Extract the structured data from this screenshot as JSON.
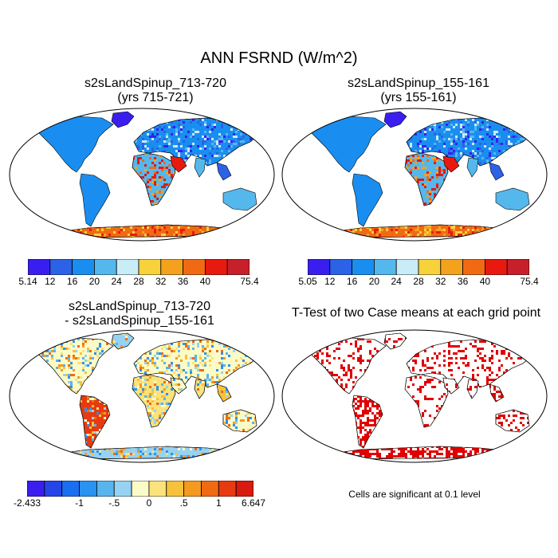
{
  "figure": {
    "title": "ANN FSRND (W/m^2)"
  },
  "panels": [
    {
      "id": "case1",
      "title_line1": "s2sLandSpinup_713-720",
      "title_line2": "(yrs 715-721)",
      "colorbar": {
        "labels": [
          "5.14",
          "12",
          "16",
          "20",
          "24",
          "28",
          "32",
          "36",
          "40",
          "75.4"
        ],
        "colors": [
          "#3a1ef0",
          "#2b62e6",
          "#1a8ef0",
          "#55b8ec",
          "#c8ecf8",
          "#f7d23b",
          "#f4a21e",
          "#f06a14",
          "#e81a10",
          "#c8202a"
        ]
      }
    },
    {
      "id": "case2",
      "title_line1": "s2sLandSpinup_155-161",
      "title_line2": "(yrs 155-161)",
      "colorbar": {
        "labels": [
          "5.05",
          "12",
          "16",
          "20",
          "24",
          "28",
          "32",
          "36",
          "40",
          "75.4"
        ],
        "colors": [
          "#3a1ef0",
          "#2b62e6",
          "#1a8ef0",
          "#55b8ec",
          "#c8ecf8",
          "#f7d23b",
          "#f4a21e",
          "#f06a14",
          "#e81a10",
          "#c8202a"
        ]
      }
    },
    {
      "id": "diff",
      "title_line1": "s2sLandSpinup_713-720",
      "title_line2": "- s2sLandSpinup_155-161",
      "colorbar": {
        "labels": [
          "-2.433",
          "-1",
          "-.5",
          "0",
          ".5",
          "1",
          "6.647"
        ],
        "colors": [
          "#3a1ef0",
          "#2446e8",
          "#1a6ef0",
          "#2a92f0",
          "#58b4ee",
          "#96d2f2",
          "#fbfbc8",
          "#fbe27a",
          "#f7c23a",
          "#f49a1e",
          "#f06a14",
          "#e83a10",
          "#d81a10"
        ]
      }
    },
    {
      "id": "ttest",
      "title_line1": "T-Test of two Case means at each grid point",
      "note": "Cells are significant at 0.1 level",
      "sig_color": "#e00000"
    }
  ]
}
